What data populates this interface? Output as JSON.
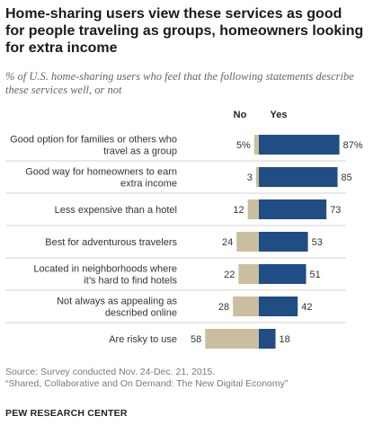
{
  "title": "Home-sharing users view these services as good for people traveling as groups, homeowners looking for extra income",
  "subtitle": "% of U.S. home-sharing users who feel that the following statements describe these services well, or not",
  "source": "Source: Survey conducted Nov. 24-Dec. 21, 2015.",
  "report": "“Shared, Collaborative and On Demand: The New Digital Economy”",
  "brand": "PEW RESEARCH CENTER",
  "colors": {
    "no": "#c9bf9f",
    "yes": "#1f4d84",
    "separator": "#d4d4d4"
  },
  "chart_data": {
    "type": "bar",
    "orientation": "horizontal-diverging",
    "series_headers": [
      "No",
      "Yes"
    ],
    "categories": [
      "Good option for families or others who travel as a group",
      "Good way for homeowners to earn extra income",
      "Less expensive than a hotel",
      "Best for adventurous travelers",
      "Located in neighborhoods where it’s hard to find hotels",
      "Not always as appealing as described online",
      "Are risky to use"
    ],
    "category_lines": [
      [
        "Good option for families or others who",
        "travel as a group"
      ],
      [
        "Good way for homeowners to earn",
        "extra income"
      ],
      [
        "Less expensive than a hotel"
      ],
      [
        "Best for adventurous travelers"
      ],
      [
        "Located in neighborhoods where",
        "it’s hard to find hotels"
      ],
      [
        "Not always as appealing as",
        "described online"
      ],
      [
        "Are risky to use"
      ]
    ],
    "series": [
      {
        "values": [
          5,
          3,
          12,
          24,
          22,
          28,
          58
        ]
      },
      {
        "values": [
          87,
          85,
          73,
          53,
          51,
          42,
          18
        ]
      }
    ],
    "value_labels": {
      "no": [
        "5%",
        "3",
        "12",
        "24",
        "22",
        "28",
        "58"
      ],
      "yes": [
        "87%",
        "85",
        "73",
        "53",
        "51",
        "42",
        "18"
      ]
    }
  }
}
